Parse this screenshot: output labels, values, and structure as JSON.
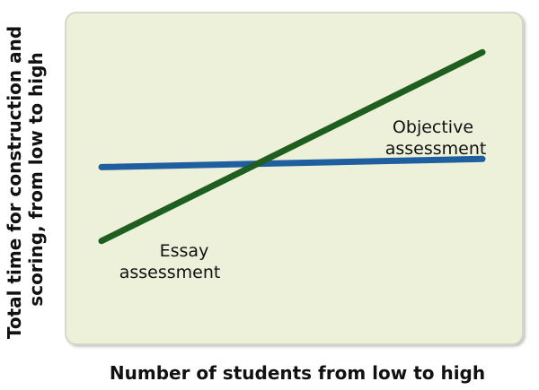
{
  "chart_data": {
    "type": "line",
    "xlabel": "Number of students from low to high",
    "ylabel": [
      "Total time for construction and",
      "scoring, from low to high"
    ],
    "xlim": [
      0,
      1
    ],
    "ylim": [
      0,
      1
    ],
    "grid": false,
    "legend": "none",
    "x": [
      0,
      1
    ],
    "series": [
      {
        "name": "Essay assessment",
        "label_lines": [
          "Essay",
          "assessment"
        ],
        "color": "#1e5e1e",
        "values": [
          0.25,
          0.94
        ]
      },
      {
        "name": "Objective assessment",
        "label_lines": [
          "Objective",
          "assessment"
        ],
        "color": "#1f5f9f",
        "values": [
          0.52,
          0.55
        ]
      }
    ]
  },
  "colors": {
    "plot_background": "#eef1da",
    "plot_border": "#cfcfc3"
  }
}
